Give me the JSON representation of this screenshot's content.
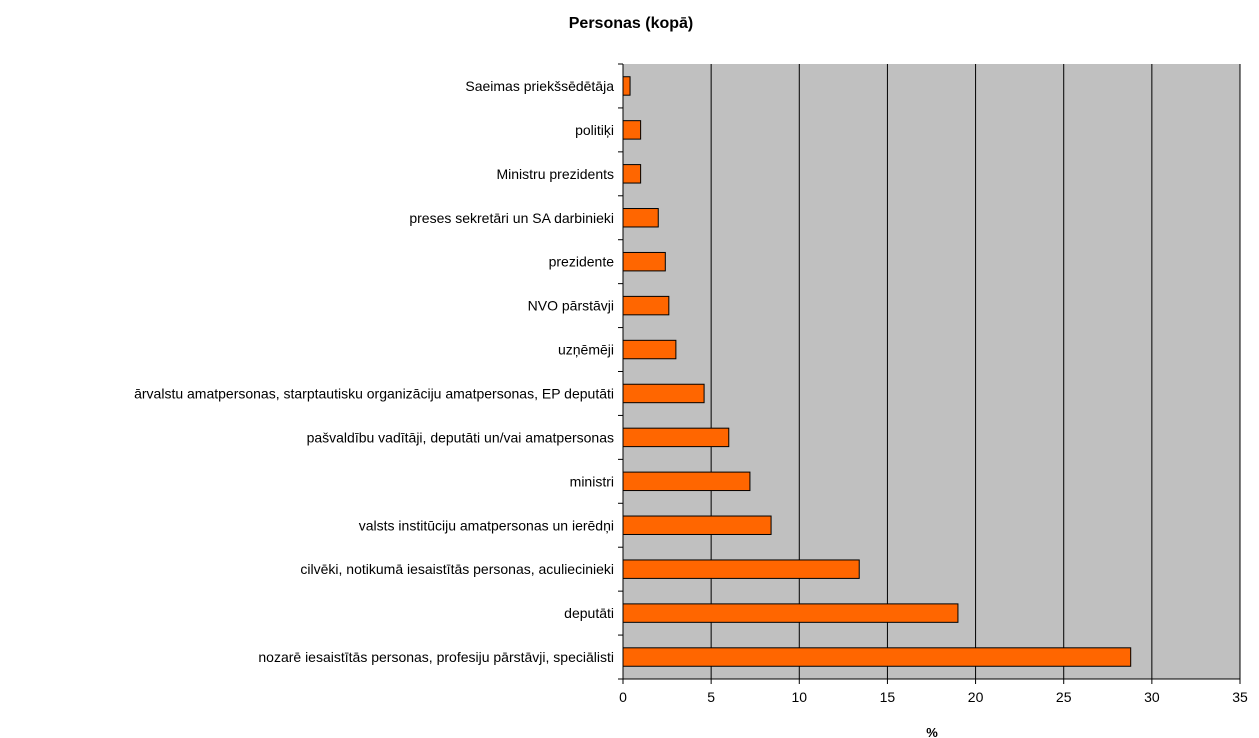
{
  "chart_data": {
    "type": "bar",
    "orientation": "horizontal",
    "title": "Personas (kopā)",
    "xlabel": "%",
    "ylabel": "",
    "xlim": [
      0,
      35
    ],
    "xticks": [
      0,
      5,
      10,
      15,
      20,
      25,
      30,
      35
    ],
    "grid": true,
    "legend": "none",
    "colors": {
      "bar_fill": "#FF6600",
      "bar_stroke": "#000000",
      "plot_background": "#C0C0C0",
      "gridline": "#000000"
    },
    "categories": [
      "Saeimas priekšsēdētāja",
      "politiķi",
      "Ministru prezidents",
      "preses sekretāri un SA darbinieki",
      "prezidente",
      "NVO pārstāvji",
      "uzņēmēji",
      "ārvalstu amatpersonas, starptautisku organizāciju amatpersonas, EP deputāti",
      "pašvaldību vadītāji, deputāti un/vai amatpersonas",
      "ministri",
      "valsts institūciju amatpersonas un ierēdņi",
      "cilvēki, notikumā iesaistītās personas, aculiecinieki",
      "deputāti",
      "nozarē iesaistītās personas, profesiju pārstāvji, speciālisti"
    ],
    "values": [
      0.4,
      1.0,
      1.0,
      2.0,
      2.4,
      2.6,
      3.0,
      4.6,
      6.0,
      7.2,
      8.4,
      13.4,
      19.0,
      28.8
    ]
  }
}
